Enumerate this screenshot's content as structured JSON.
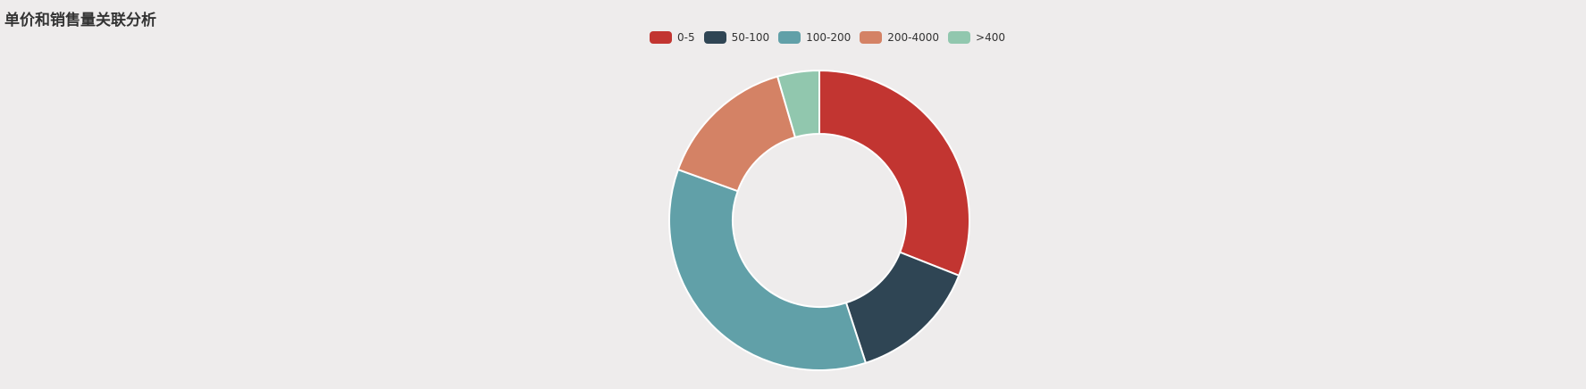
{
  "chart_data": {
    "type": "pie",
    "title": "单价和销售量关联分析",
    "categories": [
      "0-5",
      "50-100",
      "100-200",
      "200-4000",
      ">400"
    ],
    "values": [
      31,
      14,
      35.5,
      15,
      4.5
    ],
    "colors": [
      "#c23531",
      "#2f4554",
      "#61a0a8",
      "#d48265",
      "#91c7ae"
    ],
    "donut": true,
    "legend_position": "top-center"
  }
}
